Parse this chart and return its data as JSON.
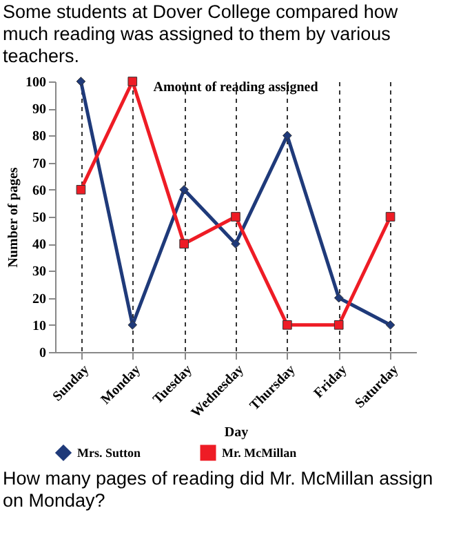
{
  "chart_data": {
    "type": "line",
    "title": "Amount of reading assigned",
    "subtitle": "Some students at Dover College compared how much reading was assigned to them by various teachers.",
    "xlabel": "Day",
    "ylabel": "Number of pages",
    "annotations": [
      "How many pages of reading did Mr. McMillan assign on Monday?"
    ],
    "categories": [
      "Sunday",
      "Monday",
      "Tuesday",
      "Wednesday",
      "Thursday",
      "Friday",
      "Saturday"
    ],
    "series": [
      {
        "name": "Mrs. Sutton",
        "color": "#1f3a7a",
        "marker": "diamond",
        "values": [
          100,
          10,
          60,
          40,
          80,
          20,
          10
        ]
      },
      {
        "name": "Mr. McMillan",
        "color": "#ee1c25",
        "marker": "square",
        "values": [
          60,
          100,
          40,
          50,
          10,
          10,
          50
        ]
      }
    ],
    "ylim": [
      0,
      100
    ],
    "yticks": [
      0,
      10,
      20,
      30,
      40,
      50,
      60,
      70,
      80,
      90,
      100
    ],
    "grid": "x",
    "legend": "bottom"
  }
}
